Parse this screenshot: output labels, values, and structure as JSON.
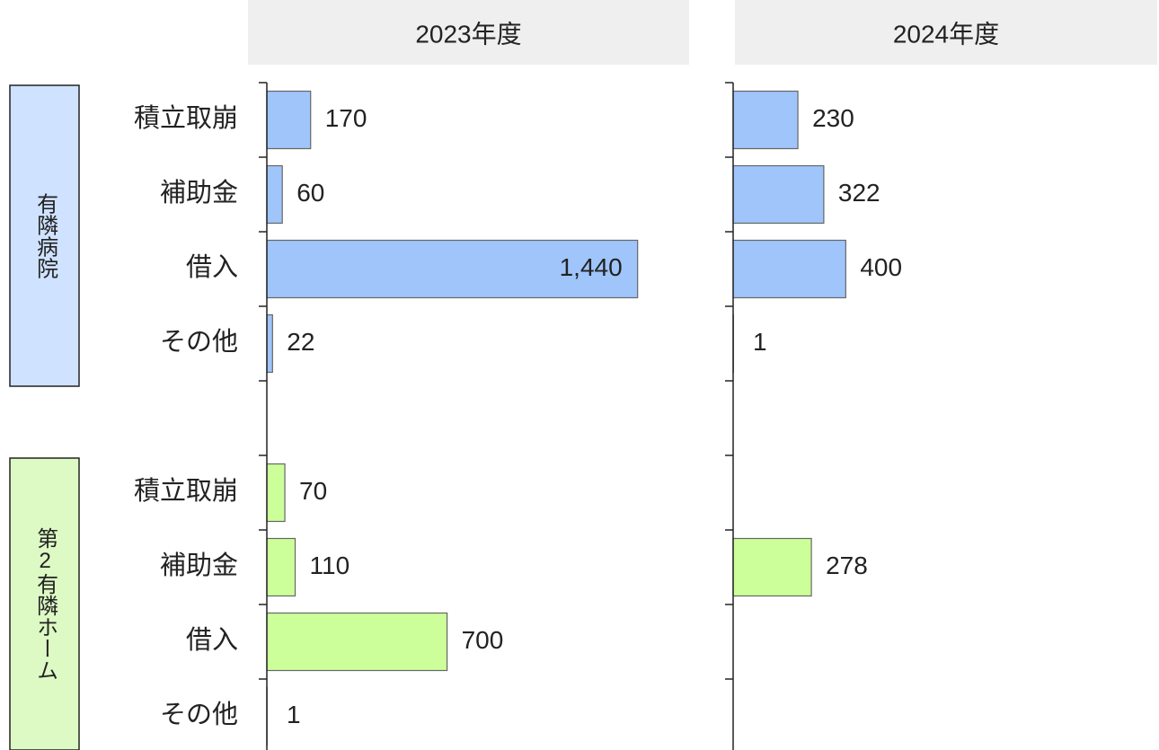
{
  "chart_data": {
    "type": "bar",
    "orientation": "horizontal",
    "groups": [
      {
        "name": "有隣病院",
        "color": "#9fc5fb",
        "categories": [
          "積立取崩",
          "補助金",
          "借入",
          "その他"
        ]
      },
      {
        "name": "第2有隣ホーム",
        "color": "#ccff99",
        "categories": [
          "積立取崩",
          "補助金",
          "借入",
          "その他"
        ]
      }
    ],
    "panels": [
      {
        "title": "2023年度",
        "xlim": [
          0,
          1640
        ],
        "series": [
          {
            "values": [
              170,
              60,
              1440,
              22
            ],
            "value_labels": [
              "170",
              "60",
              "1,440",
              "22"
            ]
          },
          {
            "values": [
              70,
              110,
              700,
              1
            ]
          }
        ]
      },
      {
        "title": "2024年度",
        "xlim": [
          0,
          1500
        ],
        "series": [
          {
            "values": [
              230,
              322,
              400,
              1
            ]
          },
          {
            "values": [
              null,
              278,
              null,
              null
            ]
          }
        ]
      }
    ]
  }
}
